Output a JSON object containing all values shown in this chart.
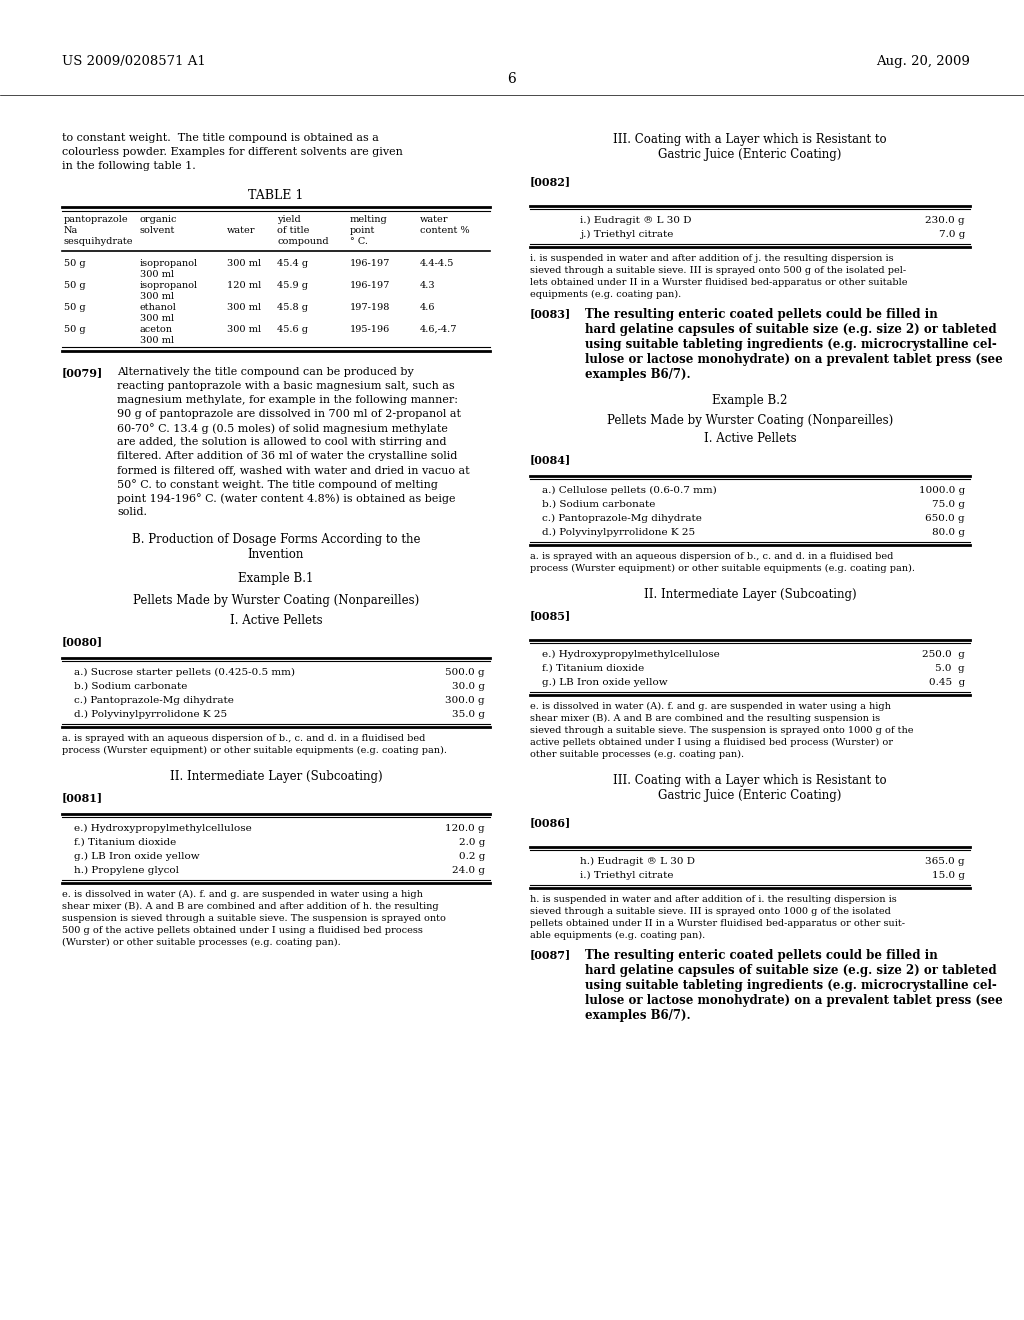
{
  "bg_color": "#ffffff",
  "header_left": "US 2009/0208571 A1",
  "header_right": "Aug. 20, 2009",
  "page_number": "6",
  "figsize": [
    10.24,
    13.2
  ],
  "dpi": 100
}
